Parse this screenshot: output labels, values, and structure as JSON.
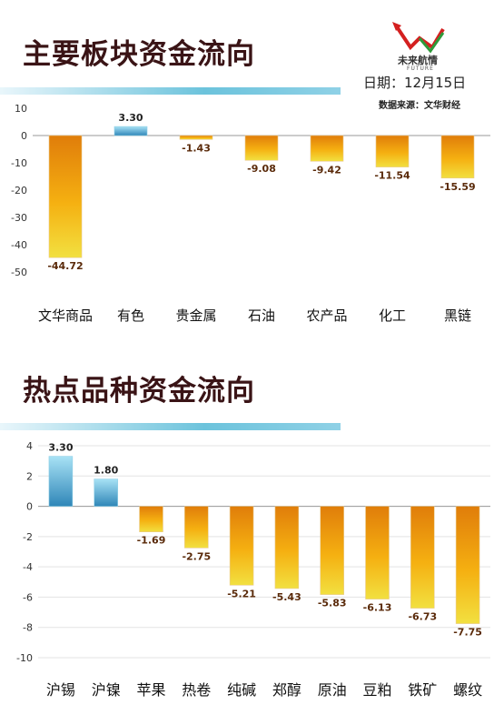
{
  "header": {
    "title1": "主要板块资金流向",
    "title2": "热点品种资金流向",
    "logo_text": "未来航情",
    "logo_sub": "FUTURE",
    "date": "日期：12月15日",
    "source": "数据来源：文华财经"
  },
  "colors": {
    "negative_top": "#e07d0a",
    "negative_mid": "#f5b011",
    "negative_bottom": "#f2e040",
    "positive_top": "#a8e2f5",
    "positive_bottom": "#2f86b8",
    "stripe": "#6cc3dc"
  },
  "chart_data": [
    {
      "type": "bar",
      "title": "主要板块资金流向",
      "categories": [
        "文华商品",
        "有色",
        "贵金属",
        "石油",
        "农产品",
        "化工",
        "黑链"
      ],
      "values": [
        -44.72,
        3.3,
        -1.43,
        -9.08,
        -9.42,
        -11.54,
        -15.59
      ],
      "ylim": [
        -50,
        10
      ],
      "yticks": [
        10,
        0,
        -10,
        -20,
        -30,
        -40,
        -50
      ],
      "grid": false,
      "data_labels": true
    },
    {
      "type": "bar",
      "title": "热点品种资金流向",
      "categories": [
        "沪锡",
        "沪镍",
        "苹果",
        "热卷",
        "纯碱",
        "郑醇",
        "原油",
        "豆粕",
        "铁矿",
        "螺纹"
      ],
      "values": [
        3.3,
        1.8,
        -1.69,
        -2.75,
        -5.21,
        -5.43,
        -5.83,
        -6.13,
        -6.73,
        -7.75
      ],
      "ylim": [
        -10,
        4
      ],
      "yticks": [
        4,
        2,
        0,
        -2,
        -4,
        -6,
        -8,
        -10
      ],
      "grid": true,
      "data_labels": true
    }
  ]
}
